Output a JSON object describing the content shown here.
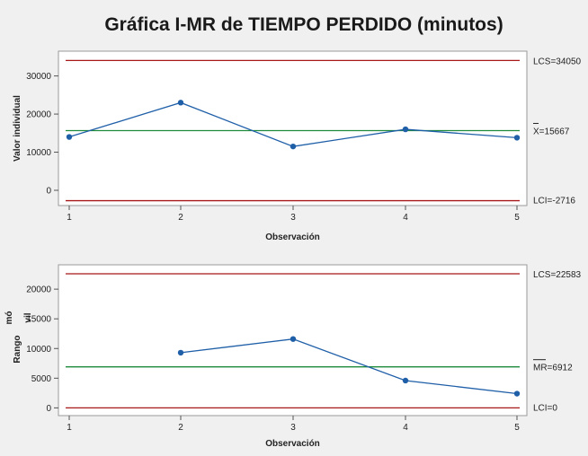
{
  "title": "Gráfica I-MR de TIEMPO PERDIDO (minutos)",
  "colors": {
    "background": "#f0f0f0",
    "plot_area": "#ffffff",
    "data_line": "#1f5fa8",
    "center_line": "#1e8a3c",
    "control_limit": "#a81818"
  },
  "chart_data": [
    {
      "type": "line",
      "name": "I chart",
      "xlabel": "Observación",
      "ylabel": "Valor individual",
      "x": [
        1,
        2,
        3,
        4,
        5
      ],
      "xticks": [
        "1",
        "2",
        "3",
        "4",
        "5"
      ],
      "values": [
        14000,
        23000,
        11500,
        16000,
        13800
      ],
      "yticks": [
        0,
        10000,
        20000,
        30000
      ],
      "ylim": [
        -4000,
        36500
      ],
      "grid": false,
      "control_lines": [
        {
          "kind": "ucl",
          "value": 34050,
          "label": "LCS=34050"
        },
        {
          "kind": "center",
          "value": 15667,
          "label": "X=15667"
        },
        {
          "kind": "lcl",
          "value": -2716,
          "label": "LCI=-2716"
        }
      ]
    },
    {
      "type": "line",
      "name": "MR chart",
      "xlabel": "Observación",
      "ylabel_lines": [
        "Rango",
        "mó",
        "vil"
      ],
      "x": [
        2,
        3,
        4,
        5
      ],
      "xticks": [
        "1",
        "2",
        "3",
        "4",
        "5"
      ],
      "values": [
        9300,
        11600,
        4600,
        2400
      ],
      "yticks": [
        0,
        5000,
        10000,
        15000,
        20000
      ],
      "ylim": [
        -1300,
        24100
      ],
      "grid": false,
      "control_lines": [
        {
          "kind": "ucl",
          "value": 22583,
          "label": "LCS=22583"
        },
        {
          "kind": "center",
          "value": 6912,
          "label": "MR=6912"
        },
        {
          "kind": "lcl",
          "value": 0,
          "label": "LCI=0"
        }
      ]
    }
  ]
}
